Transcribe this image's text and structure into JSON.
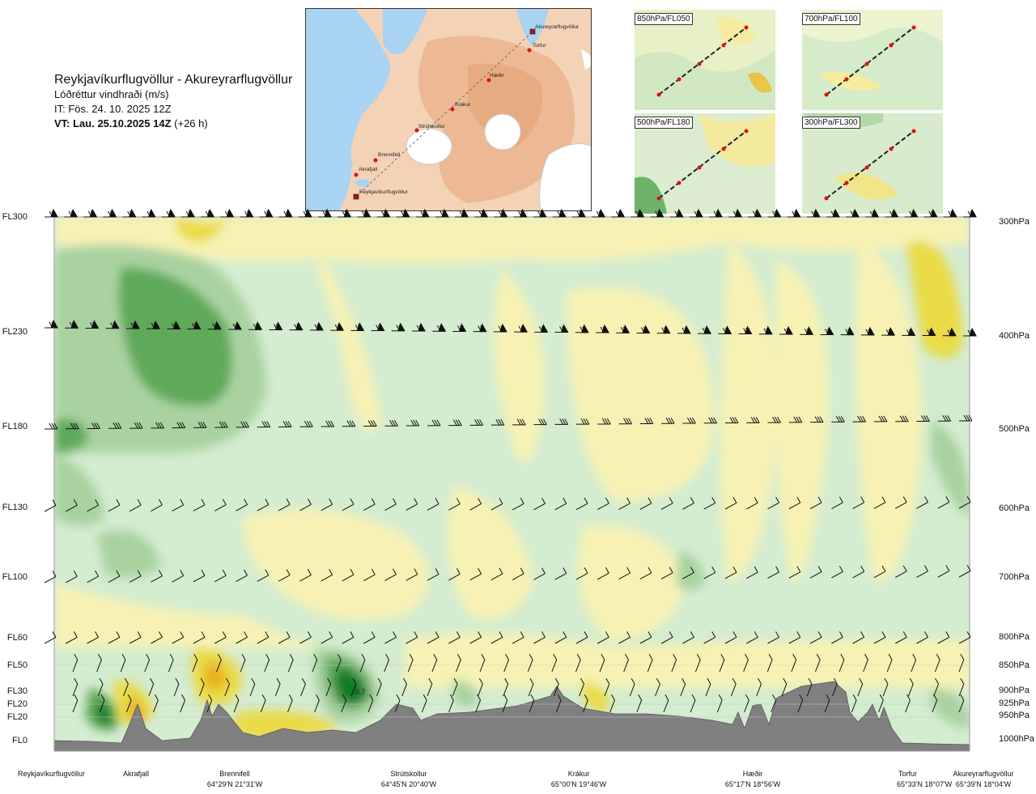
{
  "header": {
    "route": "Reykjavíkurflugvöllur - Akureyrarflugvöllur",
    "variable": "Lóðréttur vindhraði (m/s)",
    "init_time": "IT: Fös. 24. 10. 2025 12Z",
    "valid_prefix": "VT: Lau. 25.10.2025 14Z",
    "valid_suffix": " (+26 h)"
  },
  "map": {
    "waypoints": [
      "Akureyrarflugvöllur",
      "Torfur",
      "Hæðir",
      "Krákur",
      "Strútskollur",
      "Brennifell",
      "Akrafjall",
      "Reykjavíkurflugvöllur"
    ],
    "colors": {
      "land": "#f3d2b6",
      "high_land": "#eab38c",
      "sea": "#a9d3f2",
      "ice": "#ffffff",
      "route": "#e01010"
    }
  },
  "insets": [
    {
      "label": "850hPa/FL050"
    },
    {
      "label": "700hPa/FL100"
    },
    {
      "label": "500hPa/FL180"
    },
    {
      "label": "300hPa/FL300"
    }
  ],
  "left_levels": [
    "FL300",
    "FL230",
    "FL180",
    "FL130",
    "FL100",
    "FL60",
    "FL50",
    "FL30",
    "FL20",
    "FL20",
    "FL0"
  ],
  "right_levels": [
    "300hPa",
    "400hPa",
    "500hPa",
    "600hPa",
    "700hPa",
    "800hPa",
    "850hPa",
    "900hPa",
    "925hPa",
    "950hPa",
    "1000hPa"
  ],
  "stations": [
    {
      "name": "Reykjavíkurflugvöllur",
      "coord": ""
    },
    {
      "name": "Akrafjall",
      "coord": ""
    },
    {
      "name": "Brennifell",
      "coord": "64°29'N 21°31'W"
    },
    {
      "name": "Strútskollur",
      "coord": "64°45'N 20°40'W"
    },
    {
      "name": "Krákur",
      "coord": "65°00'N 19°46'W"
    },
    {
      "name": "Hæðir",
      "coord": "65°17'N 18°56'W"
    },
    {
      "name": "Torfur",
      "coord": "65°33'N 18°07'W"
    },
    {
      "name": "Akureyrarflugvöllur",
      "coord": "65°39'N 18°04'W"
    }
  ],
  "chart_data": {
    "type": "heatmap",
    "title": "Reykjavíkurflugvöllur - Akureyrarflugvöllur",
    "subtitle": "Lóðréttur vindhraði (m/s)",
    "x_categories": [
      "Reykjavíkurflugvöllur",
      "Akrafjall",
      "Brennifell",
      "Strútskollur",
      "Krákur",
      "Hæðir",
      "Torfur",
      "Akureyrarflugvöllur"
    ],
    "y_levels_left": [
      "FL0",
      "FL20",
      "FL20",
      "FL30",
      "FL50",
      "FL60",
      "FL100",
      "FL130",
      "FL180",
      "FL230",
      "FL300"
    ],
    "y_levels_right": [
      "1000hPa",
      "950hPa",
      "925hPa",
      "900hPa",
      "850hPa",
      "800hPa",
      "700hPa",
      "600hPa",
      "500hPa",
      "400hPa",
      "300hPa"
    ],
    "annotations": [
      "0.7"
    ],
    "colors": {
      "strong_down": "#0d7a28",
      "down": "#5ea95a",
      "weak_down": "#a9d2a0",
      "near_zero_down": "#d4ecd0",
      "near_zero_up": "#f7f2b4",
      "weak_up": "#eadb47",
      "up": "#e7b21a",
      "terrain": "#808080"
    }
  }
}
